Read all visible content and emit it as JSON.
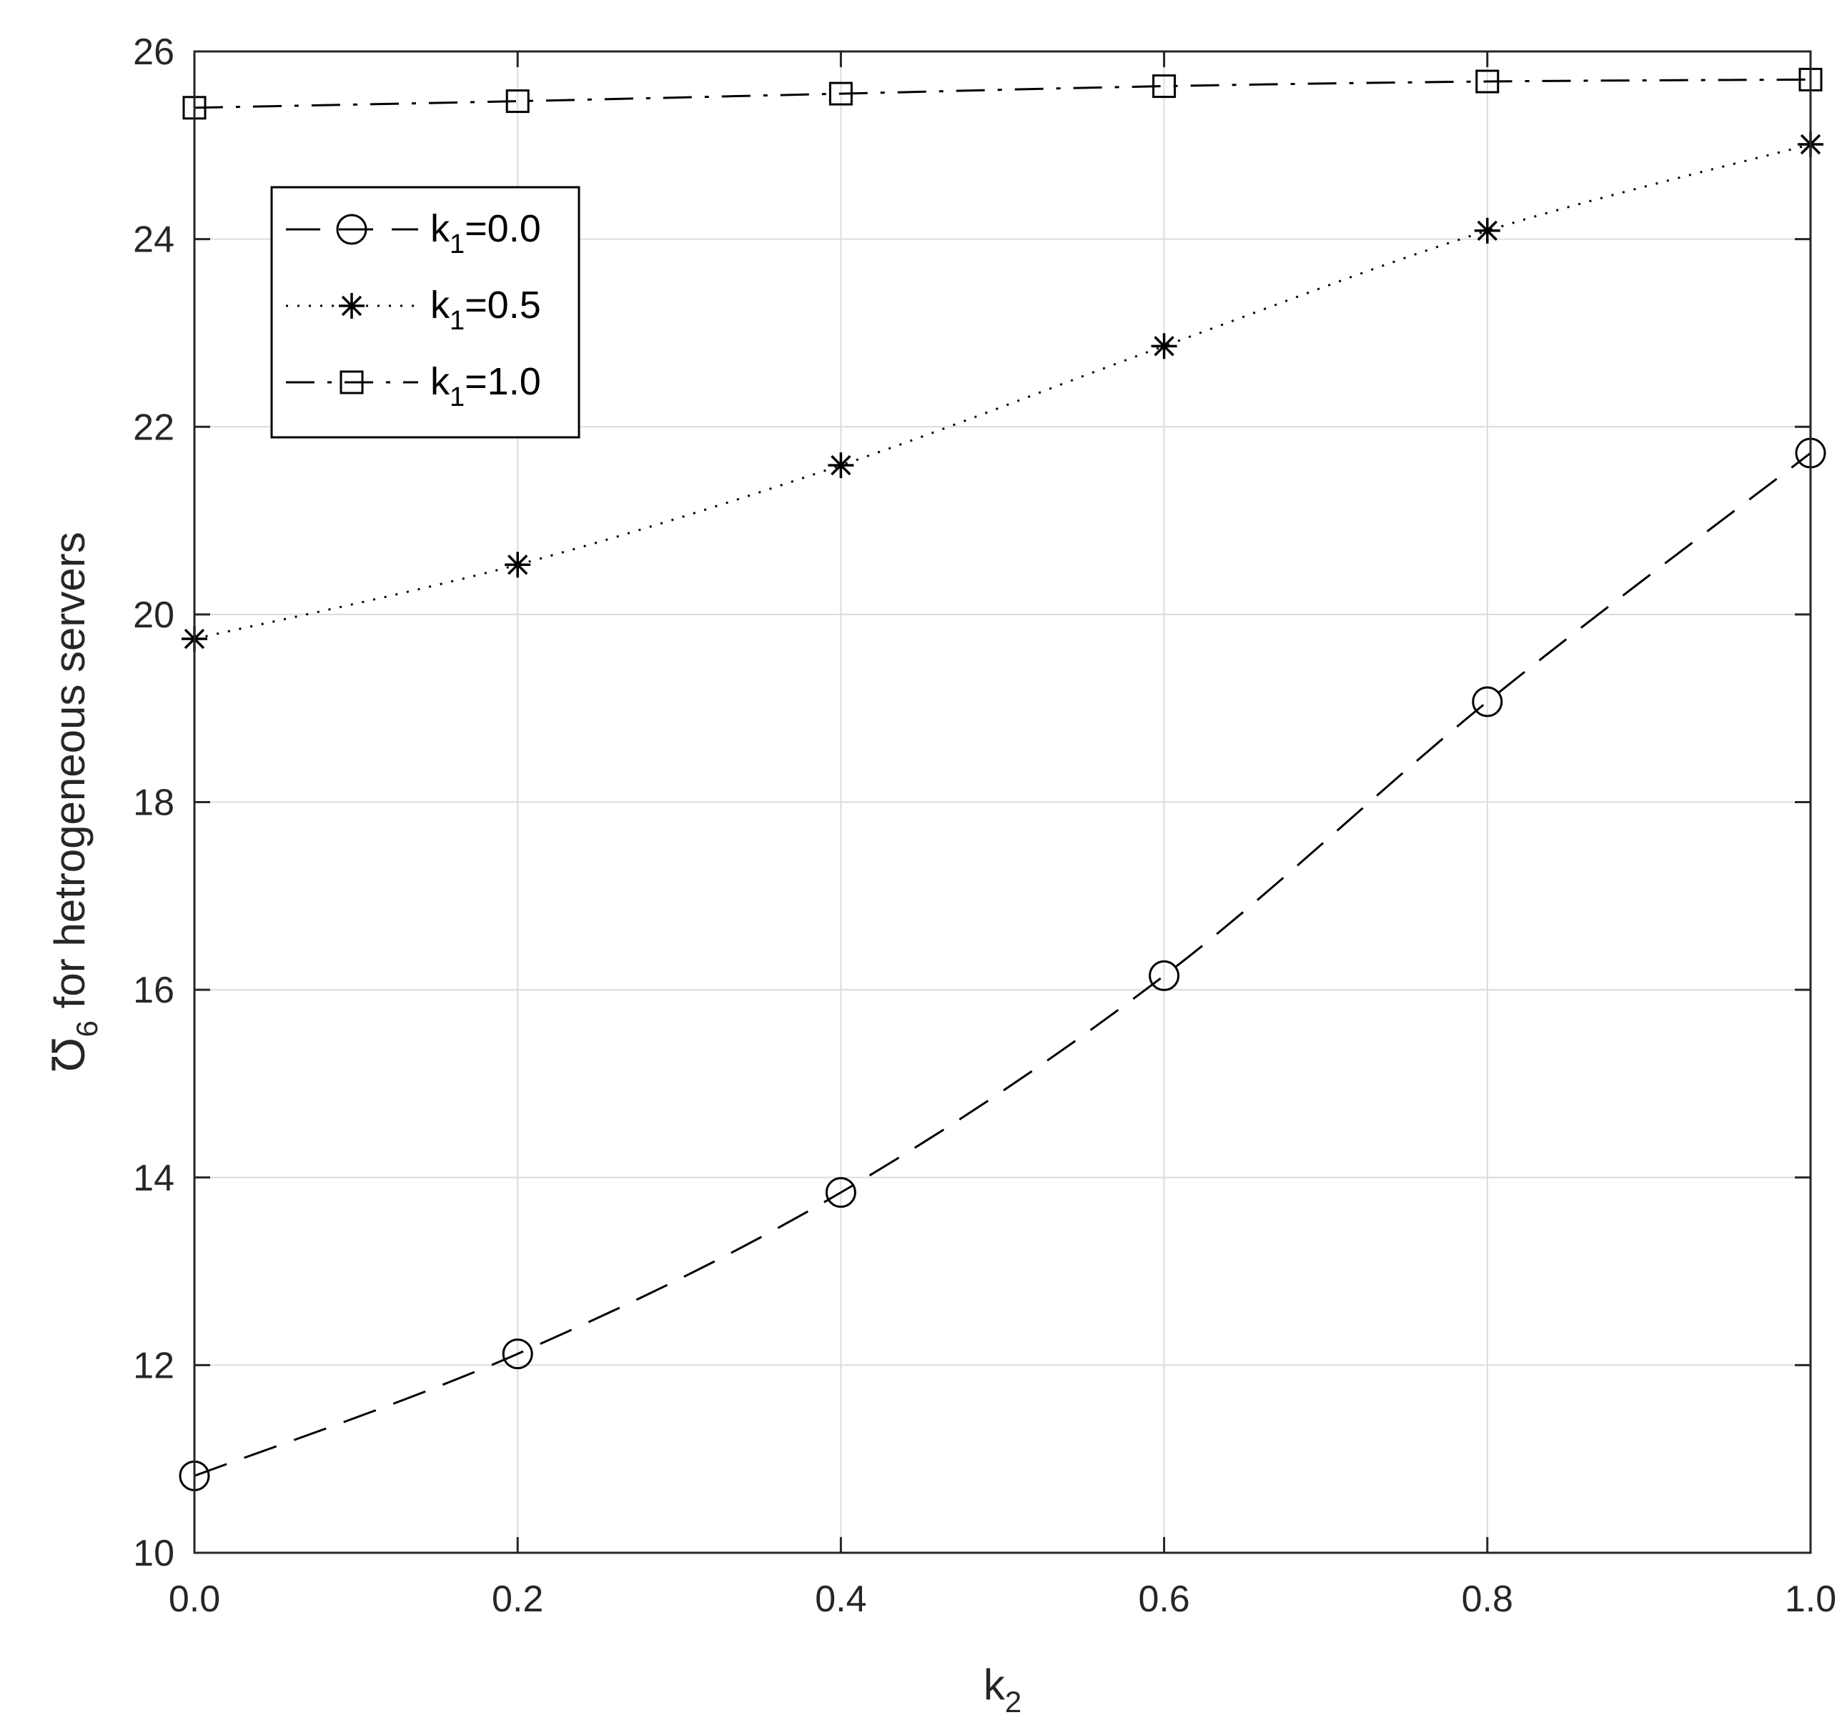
{
  "chart_data": {
    "type": "line",
    "title": "",
    "xlabel": {
      "main": "k",
      "sub": "2"
    },
    "ylabel": {
      "symbol": "Ʊ",
      "sub": "6",
      "rest": " for hetrogeneous servers"
    },
    "x": [
      0.0,
      0.2,
      0.4,
      0.6,
      0.8,
      1.0
    ],
    "xlim": [
      0,
      1
    ],
    "ylim": [
      10,
      26
    ],
    "xticks": [
      0,
      0.2,
      0.4,
      0.6,
      0.8,
      1.0
    ],
    "xtick_labels": [
      "0.0",
      "0.2",
      "0.4",
      "0.6",
      "0.8",
      "1.0"
    ],
    "yticks": [
      10,
      12,
      14,
      16,
      18,
      20,
      22,
      24,
      26
    ],
    "ytick_labels": [
      "10",
      "12",
      "14",
      "16",
      "18",
      "20",
      "22",
      "24",
      "26"
    ],
    "grid": true,
    "legend_position": "top-left",
    "series": [
      {
        "name": {
          "main": "k",
          "sub": "1",
          "rest": "=0.0"
        },
        "marker": "circle",
        "line": "dashed",
        "values": [
          10.82,
          12.12,
          13.84,
          16.15,
          19.07,
          21.72
        ]
      },
      {
        "name": {
          "main": "k",
          "sub": "1",
          "rest": "=0.5"
        },
        "marker": "star",
        "line": "dotted",
        "values": [
          19.74,
          20.53,
          21.59,
          22.86,
          24.09,
          25.01
        ]
      },
      {
        "name": {
          "main": "k",
          "sub": "1",
          "rest": "=1.0"
        },
        "marker": "square",
        "line": "dashdot",
        "values": [
          25.4,
          25.47,
          25.55,
          25.63,
          25.68,
          25.7
        ]
      }
    ],
    "colors": {
      "line": "#000000",
      "grid": "#dcdcdc",
      "axis": "#262626"
    }
  }
}
